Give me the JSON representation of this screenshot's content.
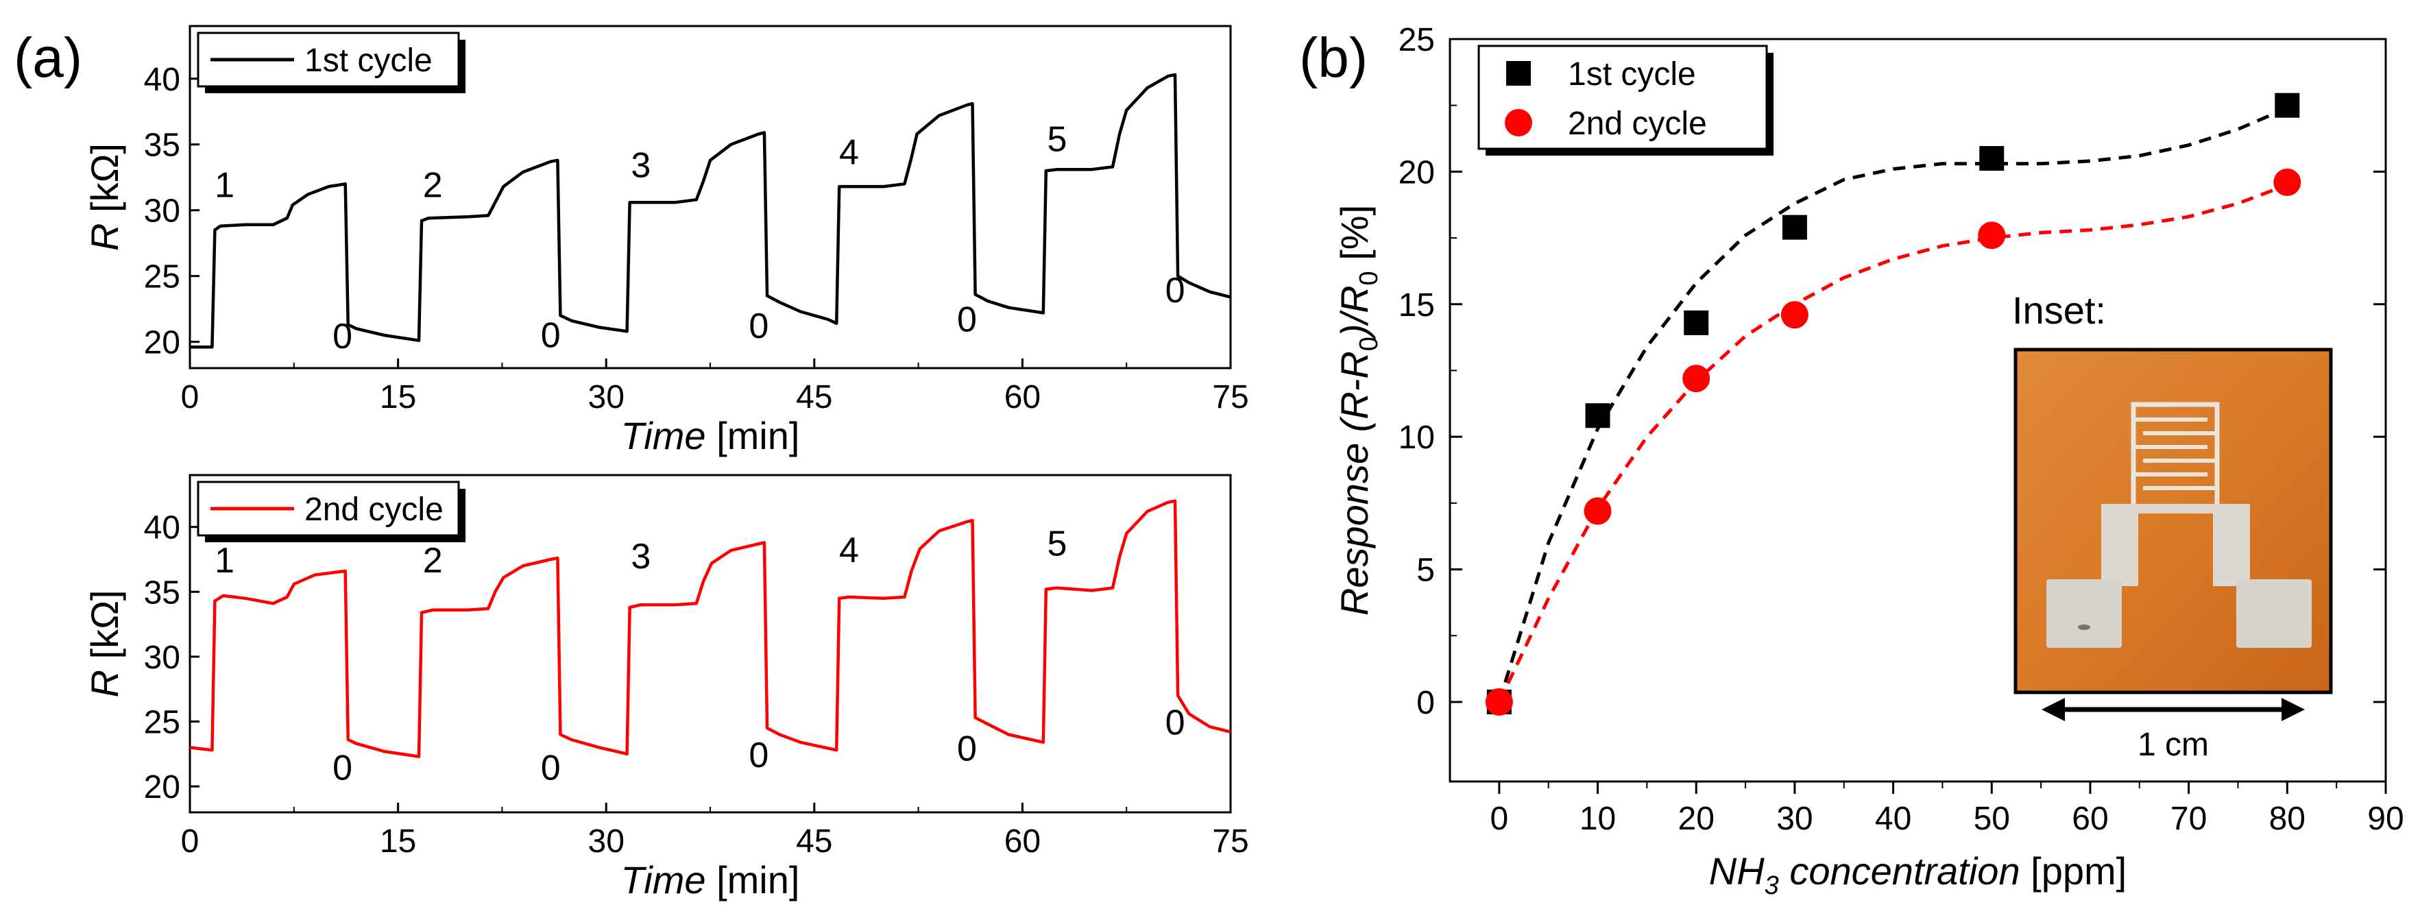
{
  "figure": {
    "panel_a_label": "(a)",
    "panel_b_label": "(b)"
  },
  "chart_data": [
    {
      "id": "a-top",
      "type": "line",
      "panel": "(a)",
      "legend": "1st cycle",
      "legend_position": "top-left",
      "color": "#000000",
      "xlabel": "Time",
      "xunit": "[min]",
      "ylabel": "R",
      "yunit": "[kΩ]",
      "xlim": [
        0,
        75
      ],
      "ylim": [
        18,
        44
      ],
      "xticks": [
        0,
        15,
        30,
        45,
        60,
        75
      ],
      "yticks": [
        20,
        25,
        30,
        35,
        40
      ],
      "annotations": [
        {
          "text": "1",
          "x": 2.5,
          "y": 31
        },
        {
          "text": "0",
          "x": 11,
          "y": 19.5
        },
        {
          "text": "2",
          "x": 17.5,
          "y": 31
        },
        {
          "text": "0",
          "x": 26,
          "y": 19.6
        },
        {
          "text": "3",
          "x": 32.5,
          "y": 32.5
        },
        {
          "text": "0",
          "x": 41,
          "y": 20.3
        },
        {
          "text": "4",
          "x": 47.5,
          "y": 33.5
        },
        {
          "text": "0",
          "x": 56,
          "y": 20.8
        },
        {
          "text": "5",
          "x": 62.5,
          "y": 34.5
        },
        {
          "text": "0",
          "x": 71,
          "y": 23
        }
      ],
      "points": [
        [
          0,
          19.6
        ],
        [
          1.6,
          19.6
        ],
        [
          1.8,
          28.5
        ],
        [
          2.2,
          28.8
        ],
        [
          4,
          28.9
        ],
        [
          6,
          28.9
        ],
        [
          7,
          29.4
        ],
        [
          7.4,
          30.4
        ],
        [
          8.5,
          31.2
        ],
        [
          10,
          31.8
        ],
        [
          11.2,
          32
        ],
        [
          11.4,
          21.3
        ],
        [
          12,
          21
        ],
        [
          14,
          20.5
        ],
        [
          16.5,
          20.1
        ],
        [
          16.7,
          29.2
        ],
        [
          17.2,
          29.4
        ],
        [
          20,
          29.5
        ],
        [
          21.5,
          29.6
        ],
        [
          22,
          30.6
        ],
        [
          22.6,
          31.8
        ],
        [
          24,
          32.9
        ],
        [
          26,
          33.7
        ],
        [
          26.5,
          33.8
        ],
        [
          26.7,
          22
        ],
        [
          27.5,
          21.6
        ],
        [
          29.5,
          21.1
        ],
        [
          31.5,
          20.8
        ],
        [
          31.7,
          30.6
        ],
        [
          32.5,
          30.6
        ],
        [
          35,
          30.6
        ],
        [
          36.5,
          30.8
        ],
        [
          37,
          32.2
        ],
        [
          37.5,
          33.8
        ],
        [
          39,
          35
        ],
        [
          41,
          35.8
        ],
        [
          41.4,
          35.9
        ],
        [
          41.6,
          23.5
        ],
        [
          42.5,
          23
        ],
        [
          44,
          22.3
        ],
        [
          46,
          21.7
        ],
        [
          46.6,
          21.4
        ],
        [
          46.8,
          31.8
        ],
        [
          47.5,
          31.8
        ],
        [
          50,
          31.8
        ],
        [
          51.5,
          32
        ],
        [
          52,
          34
        ],
        [
          52.4,
          35.8
        ],
        [
          54,
          37.2
        ],
        [
          56,
          38
        ],
        [
          56.4,
          38.1
        ],
        [
          56.6,
          23.6
        ],
        [
          57.5,
          23.1
        ],
        [
          59,
          22.6
        ],
        [
          61.5,
          22.2
        ],
        [
          61.7,
          33
        ],
        [
          62.5,
          33.1
        ],
        [
          65,
          33.1
        ],
        [
          66.5,
          33.3
        ],
        [
          67,
          35.8
        ],
        [
          67.5,
          37.6
        ],
        [
          69,
          39.3
        ],
        [
          70.5,
          40.2
        ],
        [
          71,
          40.3
        ],
        [
          71.2,
          25
        ],
        [
          72,
          24.5
        ],
        [
          73.5,
          23.8
        ],
        [
          75,
          23.4
        ]
      ]
    },
    {
      "id": "a-bottom",
      "type": "line",
      "panel": "(a)",
      "legend": "2nd cycle",
      "legend_position": "top-left",
      "color": "#ff0000",
      "xlabel": "Time",
      "xunit": "[min]",
      "ylabel": "R",
      "yunit": "[kΩ]",
      "xlim": [
        0,
        75
      ],
      "ylim": [
        18,
        44
      ],
      "xticks": [
        0,
        15,
        30,
        45,
        60,
        75
      ],
      "yticks": [
        20,
        25,
        30,
        35,
        40
      ],
      "annotations": [
        {
          "text": "1",
          "x": 2.5,
          "y": 36.5
        },
        {
          "text": "0",
          "x": 11,
          "y": 20.5
        },
        {
          "text": "2",
          "x": 17.5,
          "y": 36.5
        },
        {
          "text": "0",
          "x": 26,
          "y": 20.5
        },
        {
          "text": "3",
          "x": 32.5,
          "y": 36.8
        },
        {
          "text": "0",
          "x": 41,
          "y": 21.5
        },
        {
          "text": "4",
          "x": 47.5,
          "y": 37.3
        },
        {
          "text": "0",
          "x": 56,
          "y": 22
        },
        {
          "text": "5",
          "x": 62.5,
          "y": 37.8
        },
        {
          "text": "0",
          "x": 71,
          "y": 24
        }
      ],
      "points": [
        [
          0,
          23
        ],
        [
          1.6,
          22.8
        ],
        [
          1.8,
          34.3
        ],
        [
          2.4,
          34.7
        ],
        [
          4,
          34.5
        ],
        [
          6,
          34.1
        ],
        [
          7,
          34.6
        ],
        [
          7.5,
          35.6
        ],
        [
          9,
          36.3
        ],
        [
          11.2,
          36.6
        ],
        [
          11.4,
          23.6
        ],
        [
          12,
          23.3
        ],
        [
          14,
          22.7
        ],
        [
          16.5,
          22.3
        ],
        [
          16.7,
          33.4
        ],
        [
          17.5,
          33.6
        ],
        [
          20,
          33.6
        ],
        [
          21.5,
          33.7
        ],
        [
          22,
          35
        ],
        [
          22.6,
          36.1
        ],
        [
          24,
          37
        ],
        [
          26,
          37.5
        ],
        [
          26.5,
          37.6
        ],
        [
          26.7,
          24
        ],
        [
          27.5,
          23.6
        ],
        [
          29.5,
          23
        ],
        [
          31.5,
          22.5
        ],
        [
          31.7,
          33.8
        ],
        [
          32.5,
          34
        ],
        [
          35,
          34
        ],
        [
          36.5,
          34.1
        ],
        [
          37,
          35.8
        ],
        [
          37.6,
          37.2
        ],
        [
          39,
          38.2
        ],
        [
          41,
          38.7
        ],
        [
          41.4,
          38.8
        ],
        [
          41.6,
          24.5
        ],
        [
          42.5,
          24
        ],
        [
          44,
          23.4
        ],
        [
          46.6,
          22.8
        ],
        [
          46.8,
          34.5
        ],
        [
          47.5,
          34.6
        ],
        [
          50,
          34.5
        ],
        [
          51.5,
          34.6
        ],
        [
          52,
          36.6
        ],
        [
          52.6,
          38.3
        ],
        [
          54,
          39.7
        ],
        [
          56,
          40.4
        ],
        [
          56.4,
          40.5
        ],
        [
          56.6,
          25.3
        ],
        [
          57.5,
          24.8
        ],
        [
          59,
          24
        ],
        [
          61.5,
          23.4
        ],
        [
          61.7,
          35.2
        ],
        [
          62.5,
          35.3
        ],
        [
          65,
          35.1
        ],
        [
          66.5,
          35.3
        ],
        [
          67,
          37.7
        ],
        [
          67.5,
          39.5
        ],
        [
          69,
          41.2
        ],
        [
          70.5,
          41.9
        ],
        [
          71,
          42
        ],
        [
          71.2,
          27
        ],
        [
          72,
          25.6
        ],
        [
          73.5,
          24.6
        ],
        [
          75,
          24.2
        ]
      ]
    },
    {
      "id": "b",
      "type": "scatter",
      "panel": "(b)",
      "xlabel_main": "NH",
      "xlabel_sub": "3",
      "xlabel_rest": "concentration",
      "xunit": "[ppm]",
      "ylabel_word": "Response",
      "ylabel_open": "(R-R",
      "ylabel_sub": "0",
      "ylabel_mid": ")/R",
      "ylabel_sub2": "0",
      "yunit": "[%]",
      "xlim": [
        -5,
        90
      ],
      "ylim": [
        -3,
        25
      ],
      "xticks": [
        0,
        10,
        20,
        30,
        40,
        50,
        60,
        70,
        80,
        90
      ],
      "yticks": [
        0,
        5,
        10,
        15,
        20,
        25
      ],
      "legend_position": "top-left",
      "series": [
        {
          "name": "1st cycle",
          "marker": "square",
          "color": "#000000",
          "x": [
            0,
            10,
            20,
            30,
            50,
            80
          ],
          "y": [
            0,
            10.8,
            14.3,
            17.9,
            20.5,
            22.5
          ],
          "fit_x": [
            0,
            5,
            10,
            15,
            20,
            25,
            30,
            35,
            40,
            45,
            50,
            55,
            60,
            65,
            70,
            75,
            80
          ],
          "fit_y": [
            0,
            6.0,
            10.3,
            13.4,
            15.8,
            17.6,
            18.8,
            19.7,
            20.1,
            20.3,
            20.3,
            20.3,
            20.4,
            20.6,
            21.0,
            21.6,
            22.4
          ]
        },
        {
          "name": "2nd cycle",
          "marker": "circle",
          "color": "#ff0000",
          "x": [
            0,
            10,
            20,
            30,
            50,
            80
          ],
          "y": [
            0,
            7.2,
            12.2,
            14.6,
            17.6,
            19.6
          ],
          "fit_x": [
            0,
            5,
            10,
            15,
            20,
            25,
            30,
            35,
            40,
            45,
            50,
            55,
            60,
            65,
            70,
            75,
            80
          ],
          "fit_y": [
            0,
            3.9,
            7.3,
            10.0,
            12.1,
            13.8,
            15.0,
            16.0,
            16.7,
            17.2,
            17.5,
            17.7,
            17.8,
            18.0,
            18.3,
            18.8,
            19.5
          ]
        }
      ],
      "inset": {
        "title": "Inset:",
        "scale_label": "1 cm"
      }
    }
  ]
}
